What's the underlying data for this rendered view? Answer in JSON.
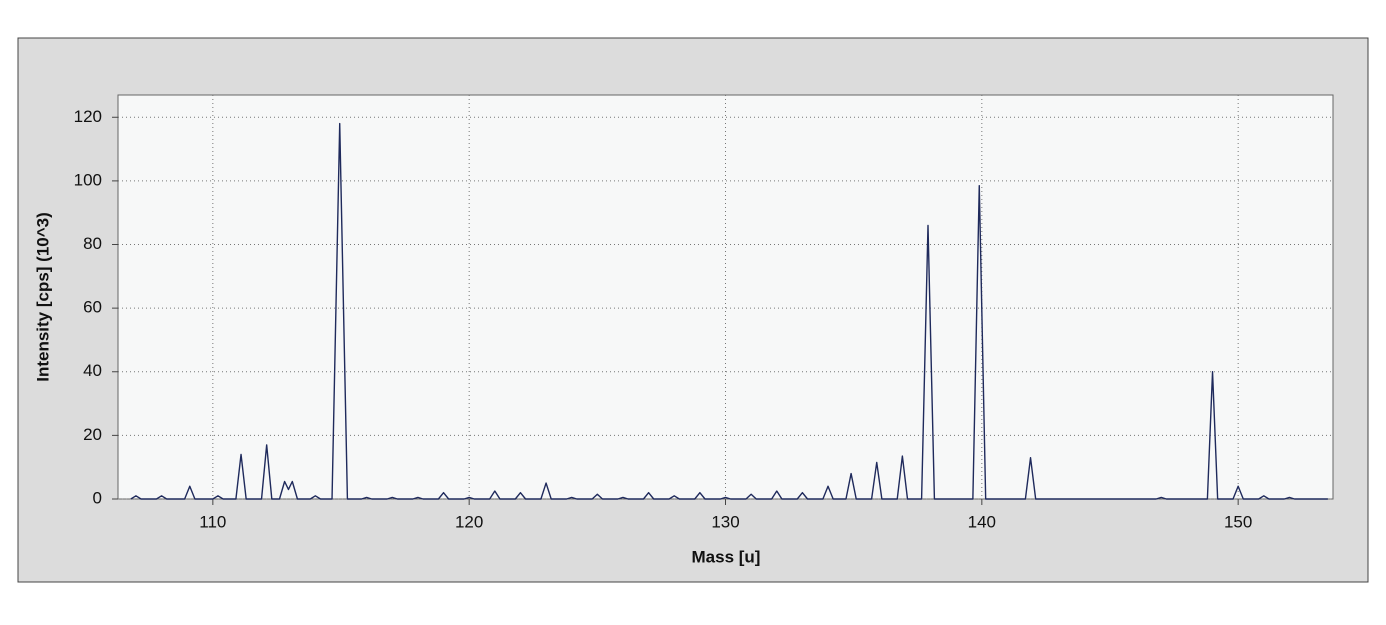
{
  "chart_data": {
    "type": "line",
    "xlabel": "Mass [u]",
    "ylabel": "Intensity [cps] (10^3)",
    "x": [
      106.8,
      107,
      107.2,
      107.8,
      108,
      108.2,
      108.9,
      109.1,
      109.3,
      110,
      110.2,
      110.4,
      110.9,
      111.1,
      111.3,
      111.9,
      112.1,
      112.3,
      112.6,
      112.8,
      112.95,
      113.1,
      113.3,
      113.8,
      114,
      114.2,
      114.65,
      114.95,
      115.25,
      115.8,
      116,
      116.2,
      116.8,
      117,
      117.2,
      117.8,
      118,
      118.2,
      118.8,
      119,
      119.2,
      119.8,
      120,
      120.2,
      120.8,
      121,
      121.2,
      121.8,
      122,
      122.2,
      122.8,
      123,
      123.2,
      123.8,
      124,
      124.2,
      124.8,
      125,
      125.2,
      125.8,
      126,
      126.2,
      126.8,
      127,
      127.2,
      127.8,
      128,
      128.2,
      128.8,
      129,
      129.2,
      129.8,
      130,
      130.2,
      130.8,
      131,
      131.2,
      131.8,
      132,
      132.2,
      132.8,
      133,
      133.2,
      133.8,
      134,
      134.2,
      134.7,
      134.9,
      135.1,
      135.7,
      135.9,
      136.1,
      136.7,
      136.9,
      137.1,
      137.65,
      137.9,
      138.15,
      139.65,
      139.9,
      140.15,
      141.7,
      141.9,
      142.1,
      146.8,
      147,
      147.2,
      148.8,
      149,
      149.2,
      149.8,
      150,
      150.2,
      150.8,
      151,
      151.2,
      151.8,
      152,
      152.2,
      153.5
    ],
    "values": [
      0,
      1,
      0,
      0,
      1,
      0,
      0,
      4,
      0,
      0,
      1,
      0,
      0,
      14,
      0,
      0,
      17,
      0,
      0,
      5.5,
      3,
      5.5,
      0,
      0,
      1,
      0,
      0,
      118,
      0,
      0,
      0.5,
      0,
      0,
      0.5,
      0,
      0,
      0.5,
      0,
      0,
      2,
      0,
      0,
      0.5,
      0,
      0,
      2.5,
      0,
      0,
      2,
      0,
      0,
      5,
      0,
      0,
      0.5,
      0,
      0,
      1.5,
      0,
      0,
      0.5,
      0,
      0,
      2,
      0,
      0,
      1,
      0,
      0,
      2,
      0,
      0,
      0.5,
      0,
      0,
      1.5,
      0,
      0,
      2.5,
      0,
      0,
      2,
      0,
      0,
      4,
      0,
      0,
      8,
      0,
      0,
      11.5,
      0,
      0,
      13.5,
      0,
      0,
      86,
      0,
      0,
      98.5,
      0,
      0,
      13,
      0,
      0,
      0.5,
      0,
      0,
      40,
      0,
      0,
      4,
      0,
      0,
      1,
      0,
      0,
      0.5,
      0,
      0
    ],
    "color": "#1f2a5c",
    "xlim": [
      106.3,
      153.7
    ],
    "ylim": [
      0,
      127
    ],
    "xticks": [
      110,
      120,
      130,
      140,
      150
    ],
    "yticks": [
      0,
      20,
      40,
      60,
      80,
      100,
      120
    ],
    "grid": true
  }
}
